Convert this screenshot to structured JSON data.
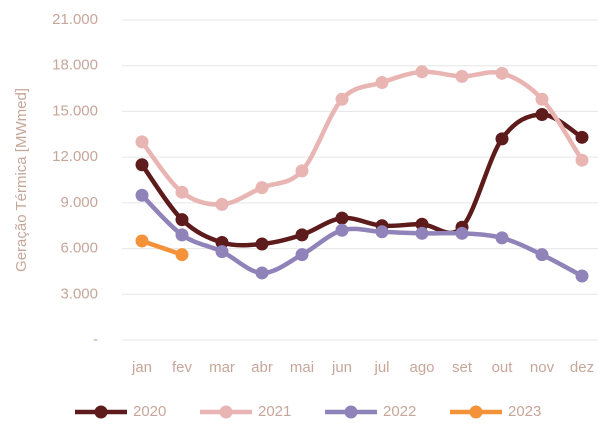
{
  "chart_data": {
    "type": "line",
    "y_label": "Geração Térmica [MWmed]",
    "categories": [
      "jan",
      "fev",
      "mar",
      "abr",
      "mai",
      "jun",
      "jul",
      "ago",
      "set",
      "out",
      "nov",
      "dez"
    ],
    "series": [
      {
        "name": "2020",
        "color": "#5e1b1b",
        "values": [
          11500,
          7900,
          6400,
          6300,
          6900,
          8000,
          7500,
          7600,
          7400,
          13200,
          14800,
          13300
        ]
      },
      {
        "name": "2021",
        "color": "#e9b5b3",
        "values": [
          13000,
          9700,
          8900,
          10000,
          11100,
          15800,
          16900,
          17600,
          17300,
          17500,
          15800,
          11800
        ]
      },
      {
        "name": "2022",
        "color": "#9083b9",
        "values": [
          9500,
          6900,
          5800,
          4400,
          5600,
          7200,
          7100,
          7000,
          7000,
          6700,
          5600,
          4200
        ]
      },
      {
        "name": "2023",
        "color": "#f4923a",
        "values": [
          6500,
          5600,
          null,
          null,
          null,
          null,
          null,
          null,
          null,
          null,
          null,
          null
        ]
      }
    ],
    "ylim": [
      0,
      21000
    ],
    "yticks": [
      {
        "value": 0,
        "label": "-"
      },
      {
        "value": 3000,
        "label": "3.000"
      },
      {
        "value": 6000,
        "label": "6.000"
      },
      {
        "value": 9000,
        "label": "9.000"
      },
      {
        "value": 12000,
        "label": "12.000"
      },
      {
        "value": 15000,
        "label": "15.000"
      },
      {
        "value": 18000,
        "label": "18.000"
      },
      {
        "value": 21000,
        "label": "21.000"
      }
    ],
    "grid": true
  }
}
